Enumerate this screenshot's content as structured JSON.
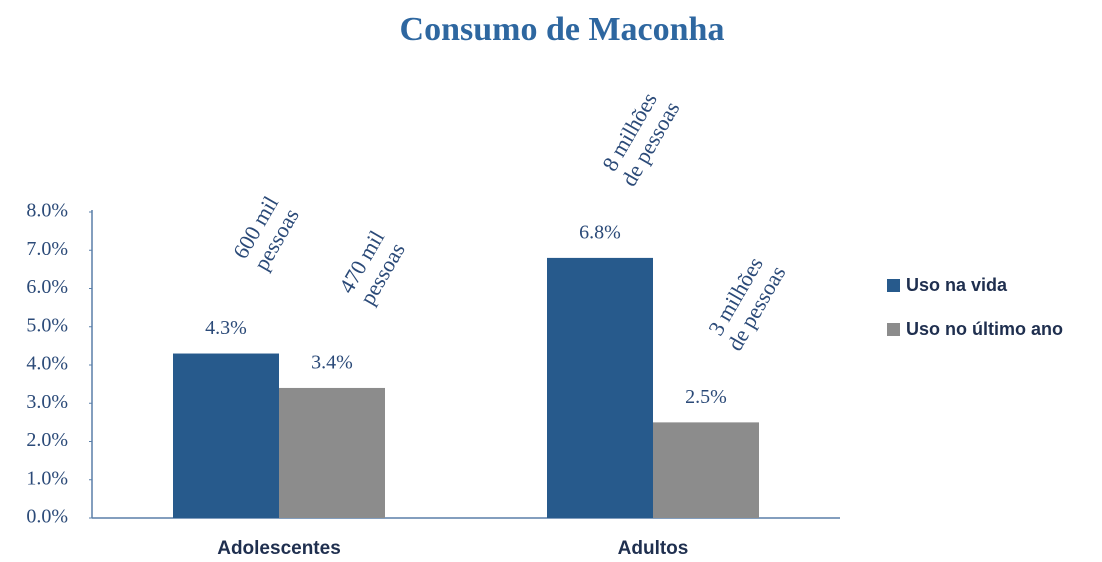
{
  "chart_data": {
    "type": "bar",
    "title": "Consumo de Maconha",
    "categories": [
      "Adolescentes",
      "Adultos"
    ],
    "series": [
      {
        "name": "Uso na vida",
        "color": "#275a8c",
        "values": [
          4.3,
          6.8
        ],
        "value_labels": [
          "4.3%",
          "6.8%"
        ],
        "annotations": [
          [
            "600 mil",
            "pessoas"
          ],
          [
            "8 milhões",
            "de pessoas"
          ]
        ]
      },
      {
        "name": "Uso no último ano",
        "color": "#8c8c8c",
        "values": [
          3.4,
          2.5
        ],
        "value_labels": [
          "3.4%",
          "2.5%"
        ],
        "annotations": [
          [
            "470 mil",
            "pessoas"
          ],
          [
            "3 milhões",
            "de pessoas"
          ]
        ]
      }
    ],
    "ylim": [
      0,
      8
    ],
    "yticks": [
      {
        "value": 0,
        "label": "0.0%"
      },
      {
        "value": 1,
        "label": "1.0%"
      },
      {
        "value": 2,
        "label": "2.0%"
      },
      {
        "value": 3,
        "label": "3.0%"
      },
      {
        "value": 4,
        "label": "4.0%"
      },
      {
        "value": 5,
        "label": "5.0%"
      },
      {
        "value": 6,
        "label": "6.0%"
      },
      {
        "value": 7,
        "label": "7.0%"
      },
      {
        "value": 8,
        "label": "8.0%"
      }
    ],
    "grid": false,
    "legend": "right"
  }
}
